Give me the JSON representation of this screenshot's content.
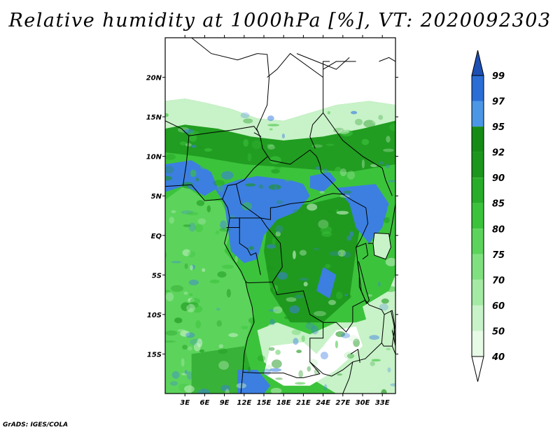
{
  "title": "Relative humidity at 1000hPa [%], VT: 2020092303",
  "footer": "GrADS: IGES/COLA",
  "map": {
    "lat_range": [
      -20,
      25
    ],
    "lon_range": [
      0,
      35
    ],
    "lat_ticks": [
      {
        "value": 20,
        "label": "20N"
      },
      {
        "value": 15,
        "label": "15N"
      },
      {
        "value": 10,
        "label": "10N"
      },
      {
        "value": 5,
        "label": "5N"
      },
      {
        "value": 0,
        "label": "EQ"
      },
      {
        "value": -5,
        "label": "5S"
      },
      {
        "value": -10,
        "label": "10S"
      },
      {
        "value": -15,
        "label": "15S"
      }
    ],
    "lon_ticks": [
      {
        "value": 3,
        "label": "3E"
      },
      {
        "value": 6,
        "label": "6E"
      },
      {
        "value": 9,
        "label": "9E"
      },
      {
        "value": 12,
        "label": "12E"
      },
      {
        "value": 15,
        "label": "15E"
      },
      {
        "value": 18,
        "label": "18E"
      },
      {
        "value": 21,
        "label": "21E"
      },
      {
        "value": 24,
        "label": "24E"
      },
      {
        "value": 27,
        "label": "27E"
      },
      {
        "value": 30,
        "label": "30E"
      },
      {
        "value": 33,
        "label": "33E"
      }
    ]
  },
  "colorbar": {
    "levels": [
      "40",
      "50",
      "60",
      "70",
      "75",
      "80",
      "85",
      "90",
      "92",
      "95",
      "97",
      "99"
    ],
    "colors": [
      "#ffffff",
      "#e6fae6",
      "#c8f2c8",
      "#a4eaa4",
      "#80e080",
      "#5cd45c",
      "#3cc33c",
      "#28ad28",
      "#1c961c",
      "#168c16",
      "#4c96e6",
      "#2a6ed6",
      "#1e50b4"
    ]
  },
  "field_colors": {
    "ocean": "#5cd45c",
    "white": "#ffffff",
    "light": "#c8f2c8",
    "mid": "#3cc33c",
    "dark": "#1c961c",
    "blue": "#3c7fe0",
    "border": "#000000"
  }
}
